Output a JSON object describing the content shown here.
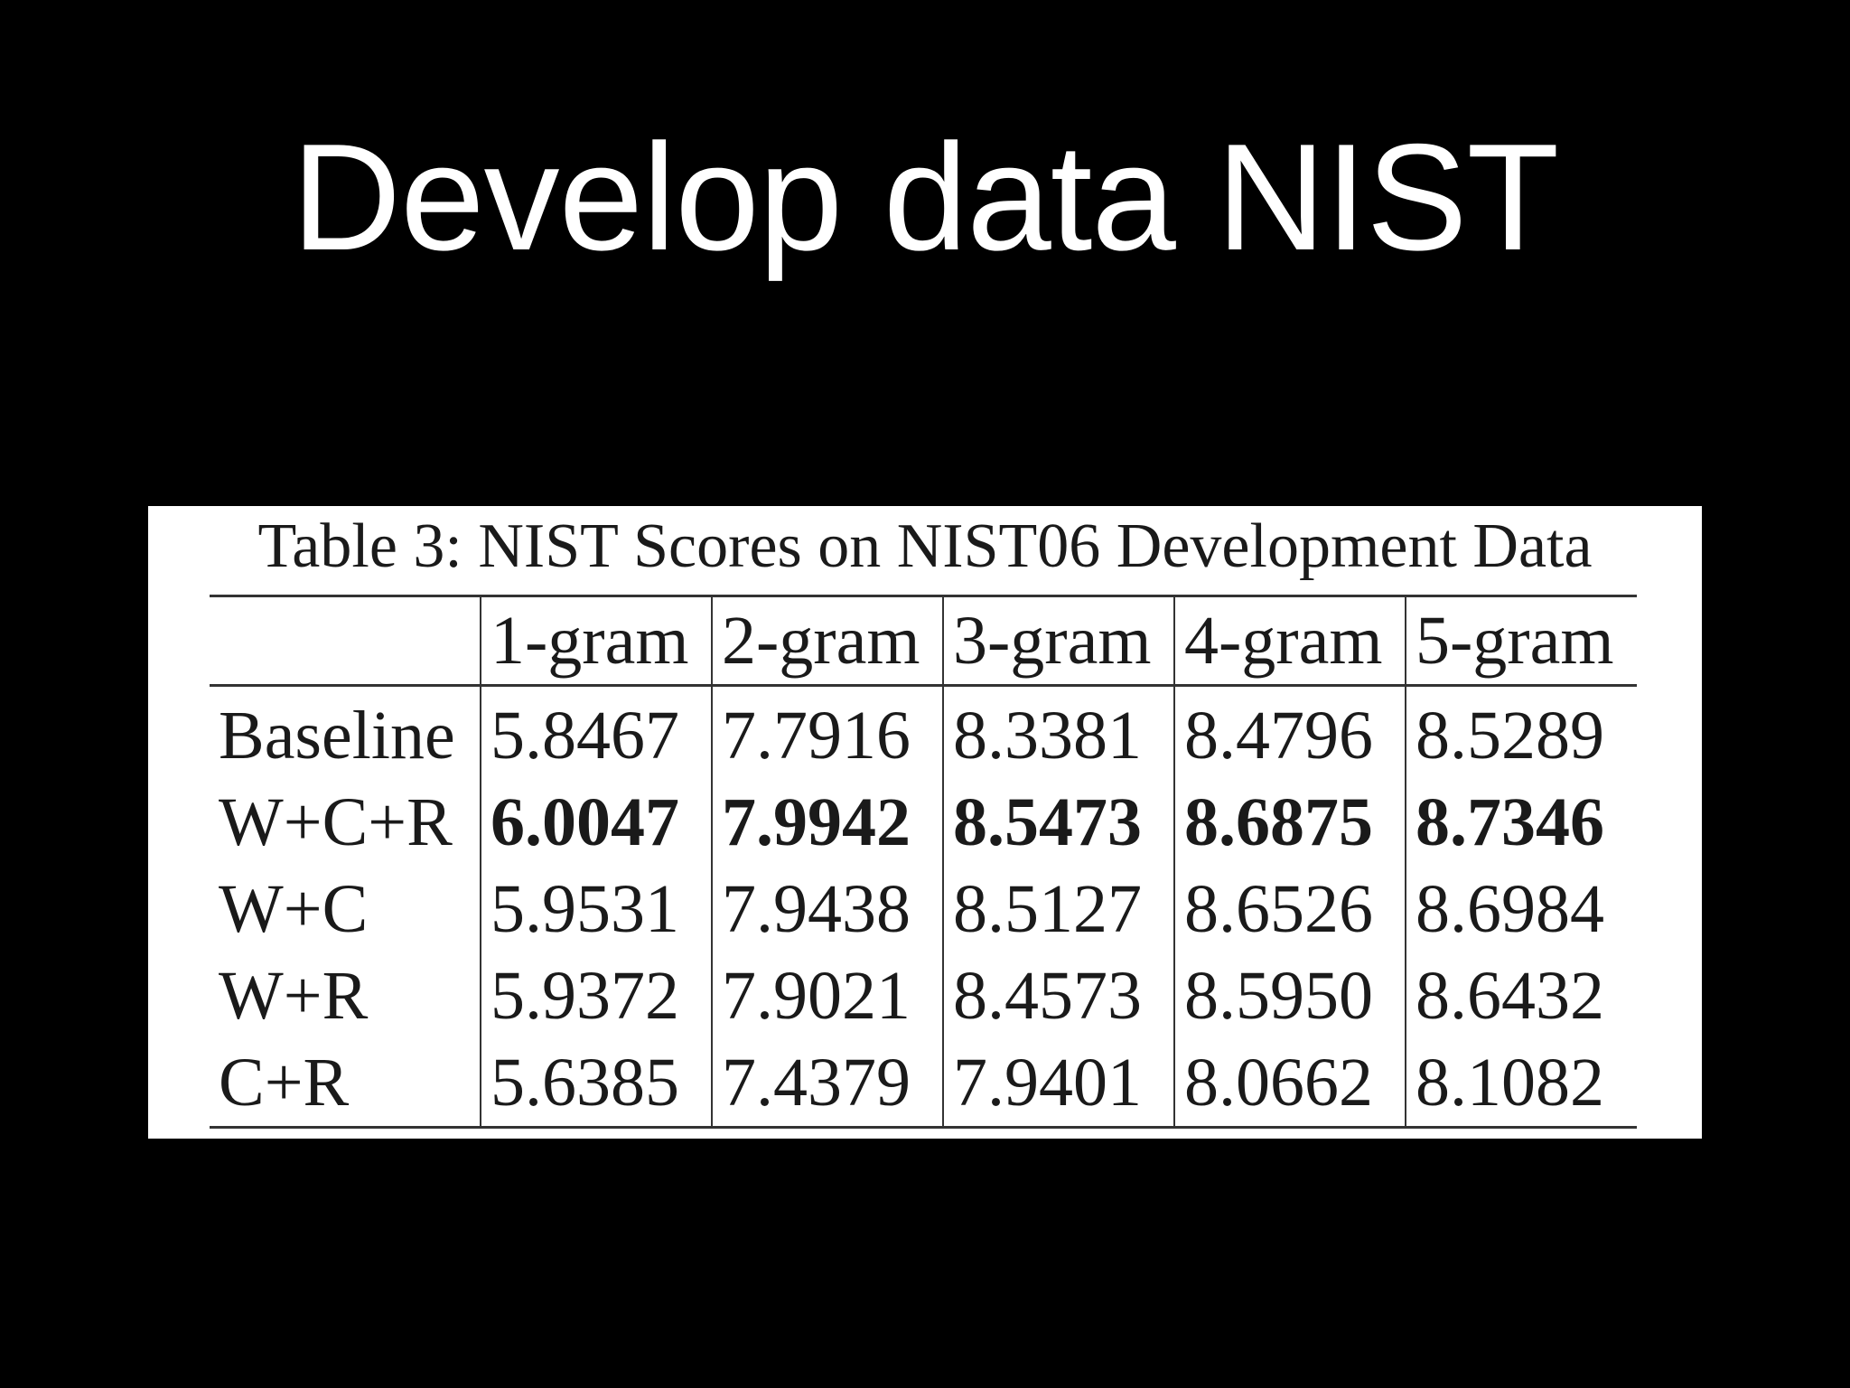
{
  "slide": {
    "title": "Develop data NIST"
  },
  "table": {
    "caption": "Table 3: NIST Scores on NIST06 Development Data",
    "corner": "",
    "columns": [
      "1-gram",
      "2-gram",
      "3-gram",
      "4-gram",
      "5-gram"
    ],
    "rows": [
      {
        "label": "Baseline",
        "values": [
          "5.8467",
          "7.7916",
          "8.3381",
          "8.4796",
          "8.5289"
        ],
        "bold": false
      },
      {
        "label": "W+C+R",
        "values": [
          "6.0047",
          "7.9942",
          "8.5473",
          "8.6875",
          "8.7346"
        ],
        "bold": true
      },
      {
        "label": "W+C",
        "values": [
          "5.9531",
          "7.9438",
          "8.5127",
          "8.6526",
          "8.6984"
        ],
        "bold": false
      },
      {
        "label": "W+R",
        "values": [
          "5.9372",
          "7.9021",
          "8.4573",
          "8.5950",
          "8.6432"
        ],
        "bold": false
      },
      {
        "label": "C+R",
        "values": [
          "5.6385",
          "7.4379",
          "7.9401",
          "8.0662",
          "8.1082"
        ],
        "bold": false
      }
    ]
  }
}
